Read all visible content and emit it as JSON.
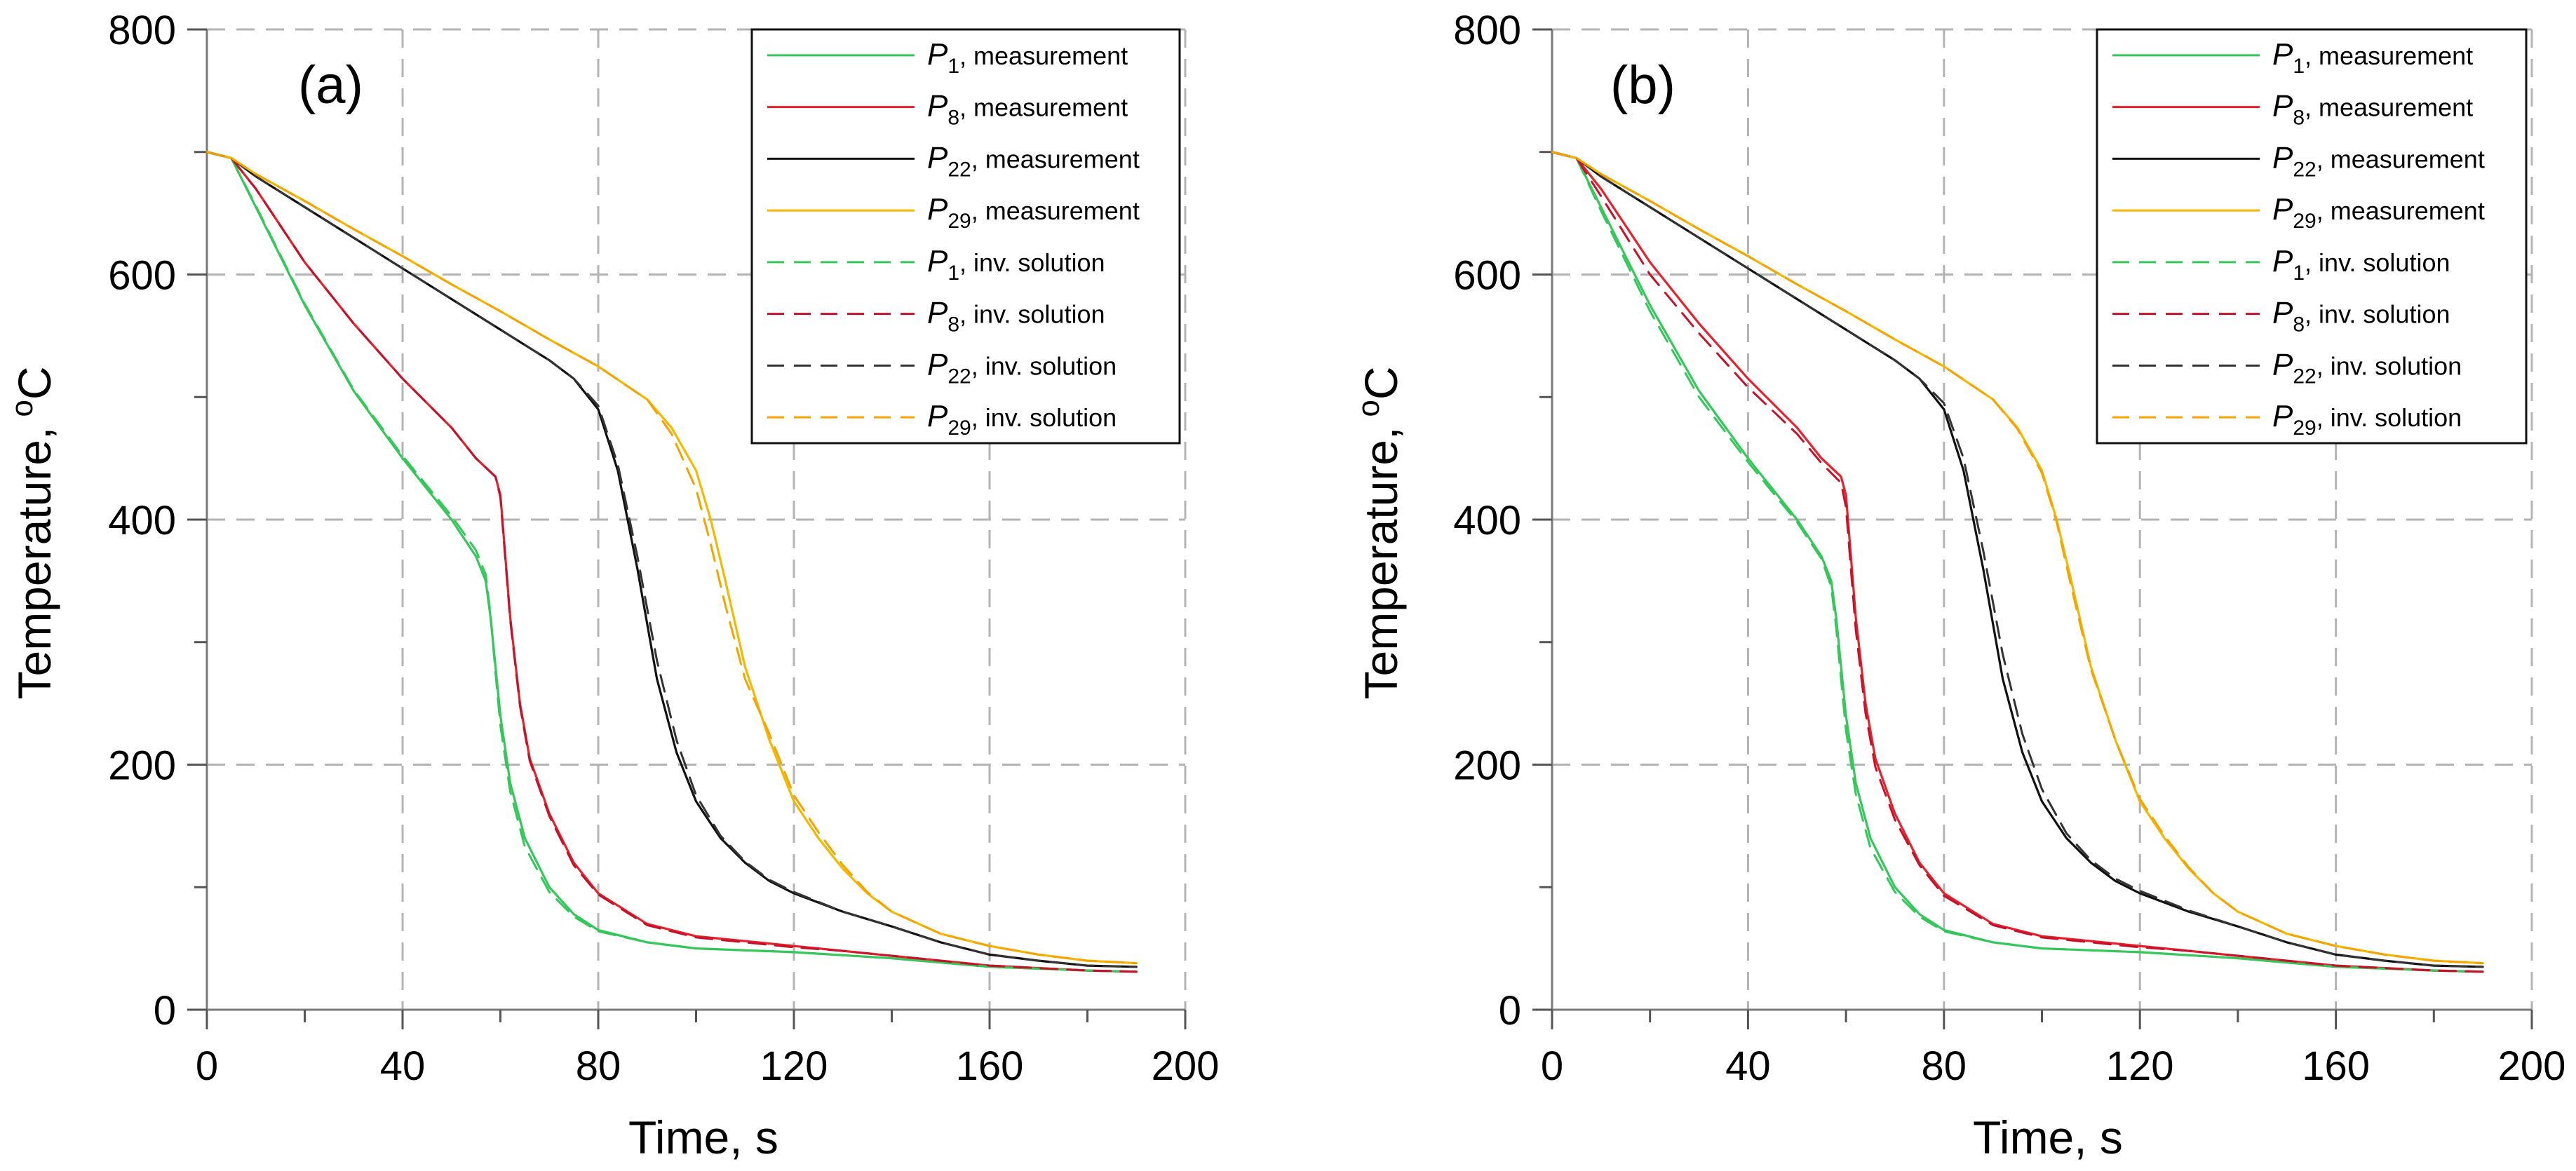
{
  "figure": {
    "panels_count": 2
  },
  "chart_data": [
    {
      "type": "line",
      "panel_label": "(a)",
      "xlabel": "Time, s",
      "ylabel_main": "Temperature,",
      "ylabel_sup": "o",
      "ylabel_unit": "C",
      "xlim": [
        0,
        200
      ],
      "ylim": [
        0,
        800
      ],
      "xticks": [
        0,
        40,
        80,
        120,
        160,
        200
      ],
      "yticks": [
        0,
        200,
        400,
        600,
        800
      ],
      "xtick_labels": [
        "0",
        "40",
        "80",
        "120",
        "160",
        "200"
      ],
      "ytick_labels": [
        "0",
        "200",
        "400",
        "600",
        "800"
      ],
      "grid": true,
      "legend_position": "top-right",
      "series": [
        {
          "id": "p1-meas",
          "name": "P1, measurement",
          "sym": "P",
          "sub": "1",
          "desc": ", measurement",
          "color": "#34c759",
          "style": "solid",
          "x": [
            0,
            5,
            10,
            20,
            30,
            40,
            50,
            55,
            57,
            58,
            59,
            60,
            62,
            65,
            70,
            75,
            80,
            90,
            100,
            120,
            140,
            160,
            180,
            190
          ],
          "y": [
            700,
            695,
            655,
            575,
            505,
            450,
            400,
            370,
            350,
            320,
            280,
            240,
            185,
            140,
            100,
            78,
            65,
            55,
            50,
            47,
            42,
            35,
            32,
            31
          ]
        },
        {
          "id": "p8-meas",
          "name": "P8, measurement",
          "sym": "P",
          "sub": "8",
          "desc": ", measurement",
          "color": "#e8202a",
          "style": "solid",
          "x": [
            0,
            5,
            10,
            20,
            30,
            40,
            50,
            55,
            59,
            60,
            61,
            62,
            64,
            66,
            70,
            75,
            80,
            90,
            100,
            120,
            130,
            140,
            160,
            180,
            190
          ],
          "y": [
            700,
            695,
            670,
            610,
            560,
            515,
            475,
            450,
            435,
            420,
            370,
            320,
            250,
            205,
            160,
            120,
            95,
            70,
            60,
            52,
            48,
            44,
            36,
            32,
            31
          ]
        },
        {
          "id": "p22-meas",
          "name": "P22, measurement",
          "sym": "P",
          "sub": "22",
          "desc": ", measurement",
          "color": "#111111",
          "style": "solid",
          "x": [
            0,
            5,
            10,
            20,
            30,
            40,
            50,
            60,
            70,
            75,
            80,
            84,
            88,
            92,
            96,
            100,
            105,
            110,
            115,
            120,
            130,
            140,
            150,
            160,
            170,
            180,
            190
          ],
          "y": [
            700,
            695,
            680,
            655,
            630,
            605,
            580,
            555,
            530,
            515,
            490,
            440,
            360,
            270,
            210,
            170,
            140,
            120,
            105,
            95,
            80,
            68,
            55,
            45,
            40,
            36,
            35
          ]
        },
        {
          "id": "p29-meas",
          "name": "P29, measurement",
          "sym": "P",
          "sub": "29",
          "desc": ", measurement",
          "color": "#f5b800",
          "style": "solid",
          "x": [
            0,
            5,
            10,
            20,
            30,
            40,
            50,
            60,
            70,
            80,
            90,
            95,
            100,
            103,
            106,
            110,
            115,
            120,
            125,
            130,
            135,
            140,
            150,
            160,
            170,
            180,
            190
          ],
          "y": [
            700,
            695,
            682,
            660,
            637,
            615,
            592,
            570,
            547,
            525,
            498,
            475,
            440,
            400,
            350,
            280,
            220,
            170,
            140,
            115,
            95,
            80,
            62,
            52,
            45,
            40,
            38
          ]
        },
        {
          "id": "p1-inv",
          "name": "P1, inv. solution",
          "sym": "P",
          "sub": "1",
          "desc": ", inv. solution",
          "color": "#34c759",
          "style": "dashed",
          "x": [
            0,
            5,
            10,
            20,
            30,
            40,
            50,
            55,
            57,
            58,
            59,
            60,
            62,
            65,
            70,
            75,
            80,
            90,
            100,
            120,
            140,
            160,
            180,
            190
          ],
          "y": [
            700,
            695,
            656,
            576,
            506,
            452,
            403,
            375,
            355,
            322,
            275,
            232,
            178,
            133,
            96,
            76,
            64,
            55,
            50,
            47,
            42,
            35,
            32,
            31
          ]
        },
        {
          "id": "p8-inv",
          "name": "P8, inv. solution",
          "sym": "P",
          "sub": "8",
          "desc": ", inv. solution",
          "color": "#c4122a",
          "style": "dashed",
          "x": [
            0,
            5,
            10,
            20,
            30,
            40,
            50,
            55,
            59,
            60,
            61,
            62,
            64,
            66,
            70,
            75,
            80,
            90,
            100,
            120,
            130,
            140,
            160,
            180,
            190
          ],
          "y": [
            700,
            695,
            670,
            610,
            560,
            515,
            475,
            450,
            435,
            418,
            368,
            318,
            248,
            203,
            158,
            118,
            94,
            69,
            59,
            51,
            48,
            44,
            36,
            32,
            31
          ]
        },
        {
          "id": "p22-inv",
          "name": "P22, inv. solution",
          "sym": "P",
          "sub": "22",
          "desc": ", inv. solution",
          "color": "#333333",
          "style": "dashed",
          "x": [
            0,
            5,
            10,
            20,
            30,
            40,
            50,
            60,
            70,
            75,
            80,
            84,
            88,
            92,
            96,
            100,
            105,
            110,
            115,
            120,
            130,
            140,
            150,
            160,
            170,
            180,
            190
          ],
          "y": [
            700,
            695,
            680,
            655,
            630,
            605,
            580,
            555,
            530,
            515,
            493,
            445,
            370,
            285,
            220,
            175,
            142,
            121,
            106,
            96,
            80,
            68,
            55,
            45,
            40,
            36,
            35
          ]
        },
        {
          "id": "p29-inv",
          "name": "P29, inv. solution",
          "sym": "P",
          "sub": "29",
          "desc": ", inv. solution",
          "color": "#f5a300",
          "style": "dashed",
          "x": [
            0,
            5,
            10,
            20,
            30,
            40,
            50,
            60,
            70,
            80,
            90,
            95,
            100,
            103,
            106,
            110,
            115,
            120,
            125,
            130,
            135,
            140,
            150,
            160,
            170,
            180,
            190
          ],
          "y": [
            700,
            695,
            682,
            660,
            637,
            615,
            592,
            570,
            547,
            525,
            498,
            470,
            425,
            380,
            330,
            270,
            225,
            175,
            145,
            118,
            96,
            80,
            62,
            52,
            45,
            40,
            38
          ]
        }
      ]
    },
    {
      "type": "line",
      "panel_label": "(b)",
      "xlabel": "Time, s",
      "ylabel_main": "Temperature,",
      "ylabel_sup": "o",
      "ylabel_unit": "C",
      "xlim": [
        0,
        200
      ],
      "ylim": [
        0,
        800
      ],
      "xticks": [
        0,
        40,
        80,
        120,
        160,
        200
      ],
      "yticks": [
        0,
        200,
        400,
        600,
        800
      ],
      "xtick_labels": [
        "0",
        "40",
        "80",
        "120",
        "160",
        "200"
      ],
      "ytick_labels": [
        "0",
        "200",
        "400",
        "600",
        "800"
      ],
      "grid": true,
      "legend_position": "top-right",
      "series": [
        {
          "id": "p1-meas",
          "name": "P1, measurement",
          "sym": "P",
          "sub": "1",
          "desc": ", measurement",
          "color": "#34c759",
          "style": "solid",
          "x": [
            0,
            5,
            10,
            20,
            30,
            40,
            50,
            55,
            57,
            58,
            59,
            60,
            62,
            65,
            70,
            75,
            80,
            90,
            100,
            120,
            140,
            160,
            180,
            190
          ],
          "y": [
            700,
            695,
            655,
            575,
            505,
            450,
            400,
            370,
            350,
            320,
            280,
            240,
            185,
            140,
            100,
            78,
            65,
            55,
            50,
            47,
            42,
            35,
            32,
            31
          ]
        },
        {
          "id": "p8-meas",
          "name": "P8, measurement",
          "sym": "P",
          "sub": "8",
          "desc": ", measurement",
          "color": "#e8202a",
          "style": "solid",
          "x": [
            0,
            5,
            10,
            20,
            30,
            40,
            50,
            55,
            59,
            60,
            61,
            62,
            64,
            66,
            70,
            75,
            80,
            90,
            100,
            120,
            130,
            140,
            160,
            180,
            190
          ],
          "y": [
            700,
            695,
            670,
            610,
            560,
            515,
            475,
            450,
            435,
            420,
            370,
            320,
            250,
            205,
            160,
            120,
            95,
            70,
            60,
            52,
            48,
            44,
            36,
            32,
            31
          ]
        },
        {
          "id": "p22-meas",
          "name": "P22, measurement",
          "sym": "P",
          "sub": "22",
          "desc": ", measurement",
          "color": "#111111",
          "style": "solid",
          "x": [
            0,
            5,
            10,
            20,
            30,
            40,
            50,
            60,
            70,
            75,
            80,
            84,
            88,
            92,
            96,
            100,
            105,
            110,
            115,
            120,
            130,
            140,
            150,
            160,
            170,
            180,
            190
          ],
          "y": [
            700,
            695,
            680,
            655,
            630,
            605,
            580,
            555,
            530,
            515,
            490,
            440,
            360,
            270,
            210,
            170,
            140,
            120,
            105,
            95,
            80,
            68,
            55,
            45,
            40,
            36,
            35
          ]
        },
        {
          "id": "p29-meas",
          "name": "P29, measurement",
          "sym": "P",
          "sub": "29",
          "desc": ", measurement",
          "color": "#f5b800",
          "style": "solid",
          "x": [
            0,
            5,
            10,
            20,
            30,
            40,
            50,
            60,
            70,
            80,
            90,
            95,
            100,
            103,
            106,
            110,
            115,
            120,
            125,
            130,
            135,
            140,
            150,
            160,
            170,
            180,
            190
          ],
          "y": [
            700,
            695,
            682,
            660,
            637,
            615,
            592,
            570,
            547,
            525,
            498,
            475,
            440,
            400,
            350,
            280,
            220,
            170,
            140,
            115,
            95,
            80,
            62,
            52,
            45,
            40,
            38
          ]
        },
        {
          "id": "p1-inv",
          "name": "P1, inv. solution",
          "sym": "P",
          "sub": "1",
          "desc": ", inv. solution",
          "color": "#34c759",
          "style": "dashed",
          "x": [
            0,
            5,
            10,
            20,
            30,
            40,
            50,
            55,
            57,
            58,
            59,
            60,
            62,
            65,
            70,
            75,
            80,
            90,
            100,
            120,
            140,
            160,
            180,
            190
          ],
          "y": [
            700,
            695,
            652,
            570,
            500,
            447,
            398,
            368,
            345,
            312,
            270,
            228,
            176,
            132,
            96,
            76,
            64,
            55,
            50,
            47,
            42,
            35,
            32,
            31
          ]
        },
        {
          "id": "p8-inv",
          "name": "P8, inv. solution",
          "sym": "P",
          "sub": "8",
          "desc": ", inv. solution",
          "color": "#c4122a",
          "style": "dashed",
          "x": [
            0,
            5,
            10,
            20,
            30,
            40,
            50,
            55,
            59,
            60,
            61,
            62,
            64,
            66,
            70,
            75,
            80,
            90,
            100,
            120,
            130,
            140,
            160,
            180,
            190
          ],
          "y": [
            700,
            695,
            664,
            600,
            552,
            508,
            470,
            446,
            430,
            410,
            360,
            310,
            242,
            198,
            155,
            118,
            93,
            69,
            59,
            51,
            48,
            44,
            36,
            32,
            31
          ]
        },
        {
          "id": "p22-inv",
          "name": "P22, inv. solution",
          "sym": "P",
          "sub": "22",
          "desc": ", inv. solution",
          "color": "#333333",
          "style": "dashed",
          "x": [
            0,
            5,
            10,
            20,
            30,
            40,
            50,
            60,
            70,
            75,
            80,
            84,
            88,
            92,
            96,
            100,
            105,
            110,
            115,
            120,
            130,
            140,
            150,
            160,
            170,
            180,
            190
          ],
          "y": [
            700,
            695,
            680,
            655,
            630,
            605,
            580,
            555,
            530,
            515,
            495,
            450,
            375,
            290,
            225,
            180,
            144,
            122,
            107,
            97,
            81,
            68,
            55,
            45,
            40,
            36,
            35
          ]
        },
        {
          "id": "p29-inv",
          "name": "P29, inv. solution",
          "sym": "P",
          "sub": "29",
          "desc": ", inv. solution",
          "color": "#f5a300",
          "style": "dashed",
          "x": [
            0,
            5,
            10,
            20,
            30,
            40,
            50,
            60,
            70,
            80,
            90,
            95,
            100,
            103,
            106,
            110,
            115,
            120,
            125,
            130,
            135,
            140,
            150,
            160,
            170,
            180,
            190
          ],
          "y": [
            700,
            695,
            682,
            660,
            637,
            615,
            592,
            570,
            547,
            525,
            498,
            474,
            438,
            398,
            345,
            278,
            220,
            172,
            142,
            116,
            95,
            80,
            62,
            52,
            45,
            40,
            38
          ]
        }
      ]
    }
  ]
}
